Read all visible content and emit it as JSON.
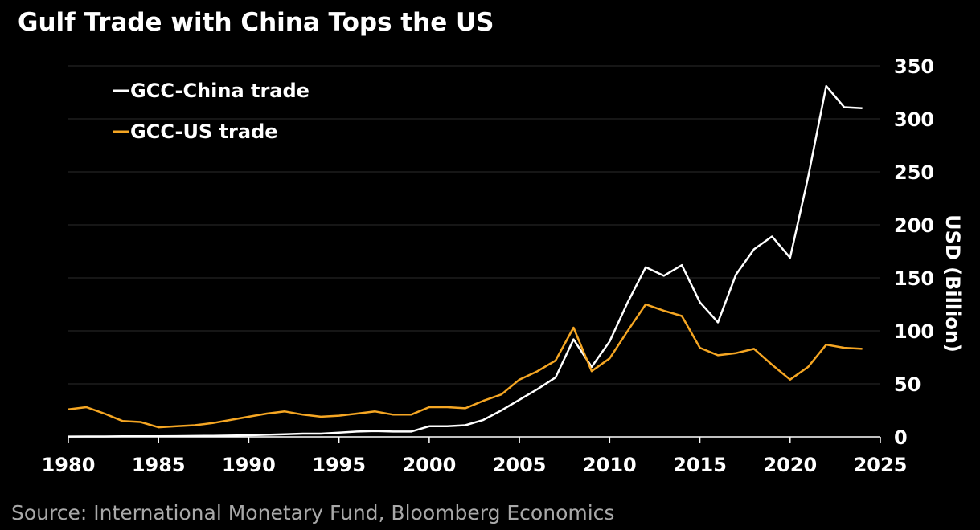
{
  "chart_data": {
    "type": "line",
    "title": "Gulf Trade with China Tops the US",
    "source": "Source: International Monetary Fund, Bloomberg Economics",
    "xlabel": "",
    "ylabel": "USD (Billion)",
    "xlim": [
      1980,
      2025
    ],
    "ylim": [
      0,
      350
    ],
    "x_ticks": [
      1980,
      1985,
      1990,
      1995,
      2000,
      2005,
      2010,
      2015,
      2020,
      2025
    ],
    "y_ticks": [
      0,
      50,
      100,
      150,
      200,
      250,
      300,
      350
    ],
    "grid": true,
    "y_axis_side": "right",
    "legend_position": "top-left",
    "series": [
      {
        "name": "GCC-China trade",
        "color": "#ffffff",
        "x": [
          1980,
          1981,
          1982,
          1983,
          1984,
          1985,
          1986,
          1987,
          1988,
          1989,
          1990,
          1991,
          1992,
          1993,
          1994,
          1995,
          1996,
          1997,
          1998,
          1999,
          2000,
          2001,
          2002,
          2003,
          2004,
          2005,
          2006,
          2007,
          2008,
          2009,
          2010,
          2011,
          2012,
          2013,
          2014,
          2015,
          2016,
          2017,
          2018,
          2019,
          2020,
          2021,
          2022,
          2023,
          2024
        ],
        "values": [
          0.3,
          0.4,
          0.4,
          0.5,
          0.5,
          0.6,
          0.7,
          0.8,
          1,
          1.2,
          1.5,
          2,
          2.5,
          3,
          3,
          4,
          5,
          5.5,
          5,
          5,
          10,
          10,
          11,
          16,
          25,
          35,
          45,
          56,
          92,
          66,
          90,
          127,
          160,
          152,
          162,
          127,
          108,
          153,
          177,
          189,
          169,
          245,
          331,
          311,
          310
        ]
      },
      {
        "name": "GCC-US trade",
        "color": "#f5a623",
        "x": [
          1980,
          1981,
          1982,
          1983,
          1984,
          1985,
          1986,
          1987,
          1988,
          1989,
          1990,
          1991,
          1992,
          1993,
          1994,
          1995,
          1996,
          1997,
          1998,
          1999,
          2000,
          2001,
          2002,
          2003,
          2004,
          2005,
          2006,
          2007,
          2008,
          2009,
          2010,
          2011,
          2012,
          2013,
          2014,
          2015,
          2016,
          2017,
          2018,
          2019,
          2020,
          2021,
          2022,
          2023,
          2024
        ],
        "values": [
          26,
          28,
          22,
          15,
          14,
          9,
          10,
          11,
          13,
          16,
          19,
          22,
          24,
          21,
          19,
          20,
          22,
          24,
          21,
          21,
          28,
          28,
          27,
          34,
          40,
          54,
          62,
          72,
          103,
          62,
          74,
          100,
          125,
          119,
          114,
          84,
          77,
          79,
          83,
          68,
          54,
          66,
          87,
          84,
          83
        ]
      }
    ]
  }
}
